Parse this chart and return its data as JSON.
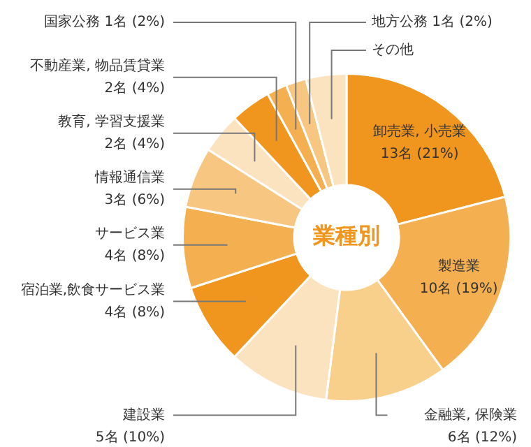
{
  "chart_data": {
    "type": "donut",
    "categories": [
      "卸売業, 小売業",
      "製造業",
      "金融業, 保険業",
      "建設業",
      "宿泊業,飲食サービス業",
      "サービス業",
      "情報通信業",
      "教育, 学習支援業",
      "不動産業, 物品賃貸業",
      "国家公務",
      "地方公務",
      "その他"
    ],
    "values": [
      21,
      19,
      12,
      10,
      8,
      8,
      6,
      4,
      4,
      2,
      2,
      4
    ],
    "value_labels": [
      "13名 (21%)",
      "10名 (19%)",
      "6名 (12%)",
      "5名 (10%)",
      "4名 (8%)",
      "4名 (8%)",
      "3名 (6%)",
      "2名 (4%)",
      "2名 (4%)",
      "1名 (2%)",
      "1名 (2%)",
      null
    ],
    "colors": [
      "#f0961e",
      "#f4b050",
      "#f9cf8c",
      "#fce3c0",
      "#f0961e",
      "#f4b050",
      "#f7c680",
      "#fce3c0",
      "#f0961e",
      "#f4b050",
      "#f7c680",
      "#fce3c0"
    ],
    "annotations": [
      "業種別"
    ],
    "legend": false
  }
}
